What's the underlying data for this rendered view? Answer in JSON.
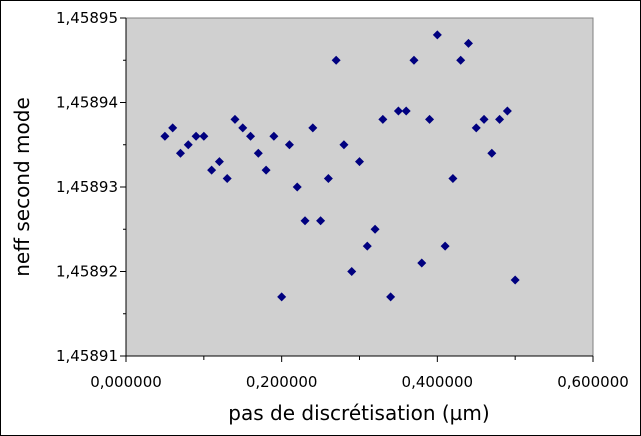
{
  "chart_data": {
    "type": "scatter",
    "title": "",
    "xlabel": "pas de discrétisation (µm)",
    "ylabel": "neff second mode",
    "xlim": [
      0.0,
      0.6
    ],
    "ylim": [
      1.45891,
      1.45895
    ],
    "x_ticks": [
      0.0,
      0.2,
      0.4,
      0.6
    ],
    "x_tick_labels": [
      "0,000000",
      "0,200000",
      "0,400000",
      "0,600000"
    ],
    "y_ticks": [
      1.45891,
      1.45892,
      1.45893,
      1.45894,
      1.45895
    ],
    "y_tick_labels": [
      "1,45891",
      "1,45892",
      "1,45893",
      "1,45894",
      "1,45895"
    ],
    "grid": false,
    "legend": "none",
    "plot_background": "#d0d0d0",
    "marker_color": "#00007f",
    "marker": "diamond",
    "series": [
      {
        "points": [
          [
            0.05,
            1.458936
          ],
          [
            0.06,
            1.458937
          ],
          [
            0.07,
            1.458934
          ],
          [
            0.08,
            1.458935
          ],
          [
            0.09,
            1.458936
          ],
          [
            0.1,
            1.458936
          ],
          [
            0.11,
            1.458932
          ],
          [
            0.12,
            1.458933
          ],
          [
            0.13,
            1.458931
          ],
          [
            0.14,
            1.458938
          ],
          [
            0.15,
            1.458937
          ],
          [
            0.16,
            1.458936
          ],
          [
            0.17,
            1.458934
          ],
          [
            0.18,
            1.458932
          ],
          [
            0.19,
            1.458936
          ],
          [
            0.2,
            1.458917
          ],
          [
            0.21,
            1.458935
          ],
          [
            0.22,
            1.45893
          ],
          [
            0.23,
            1.458926
          ],
          [
            0.24,
            1.458937
          ],
          [
            0.25,
            1.458926
          ],
          [
            0.26,
            1.458931
          ],
          [
            0.27,
            1.458945
          ],
          [
            0.28,
            1.458935
          ],
          [
            0.29,
            1.45892
          ],
          [
            0.3,
            1.458933
          ],
          [
            0.31,
            1.458923
          ],
          [
            0.32,
            1.458925
          ],
          [
            0.33,
            1.458938
          ],
          [
            0.34,
            1.458917
          ],
          [
            0.35,
            1.458939
          ],
          [
            0.36,
            1.458939
          ],
          [
            0.37,
            1.458945
          ],
          [
            0.38,
            1.458921
          ],
          [
            0.39,
            1.458938
          ],
          [
            0.4,
            1.458948
          ],
          [
            0.41,
            1.458923
          ],
          [
            0.42,
            1.458931
          ],
          [
            0.43,
            1.458945
          ],
          [
            0.44,
            1.458947
          ],
          [
            0.45,
            1.458937
          ],
          [
            0.46,
            1.458938
          ],
          [
            0.47,
            1.458934
          ],
          [
            0.48,
            1.458938
          ],
          [
            0.49,
            1.458939
          ],
          [
            0.5,
            1.458919
          ]
        ]
      }
    ]
  }
}
